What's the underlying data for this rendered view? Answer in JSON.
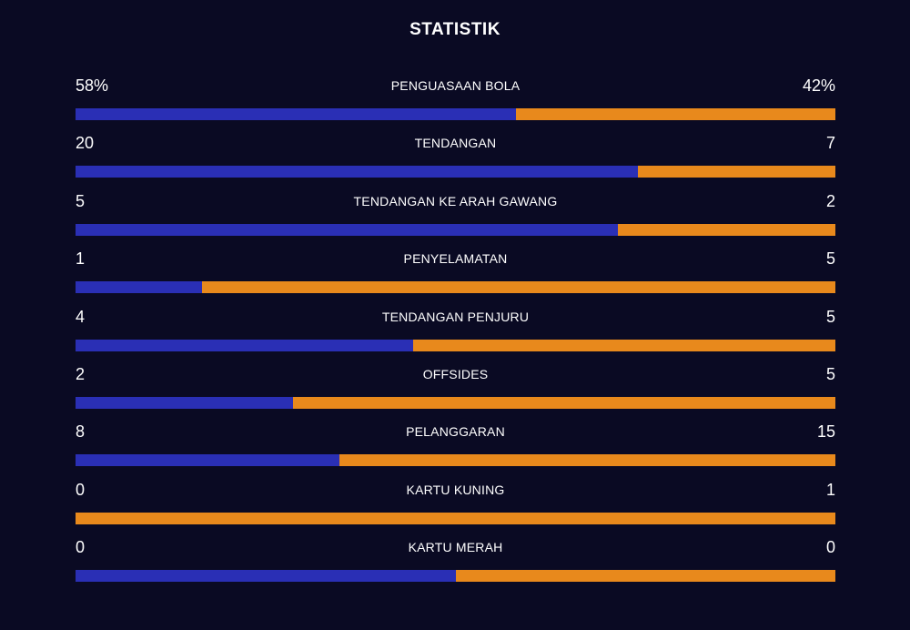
{
  "title": "STATISTIK",
  "colors": {
    "background": "#0a0a23",
    "home": "#2a2fb5",
    "away": "#e8891c",
    "text": "#ffffff"
  },
  "stats": [
    {
      "name": "PENGUASAAN BOLA",
      "home": "58%",
      "away": "42%",
      "home_share": 0.58
    },
    {
      "name": "TENDANGAN",
      "home": "20",
      "away": "7",
      "home_share": 0.7407
    },
    {
      "name": "TENDANGAN KE ARAH GAWANG",
      "home": "5",
      "away": "2",
      "home_share": 0.7143
    },
    {
      "name": "PENYELAMATAN",
      "home": "1",
      "away": "5",
      "home_share": 0.1667
    },
    {
      "name": "TENDANGAN PENJURU",
      "home": "4",
      "away": "5",
      "home_share": 0.4444
    },
    {
      "name": "OFFSIDES",
      "home": "2",
      "away": "5",
      "home_share": 0.2857
    },
    {
      "name": "PELANGGARAN",
      "home": "8",
      "away": "15",
      "home_share": 0.3478
    },
    {
      "name": "KARTU KUNING",
      "home": "0",
      "away": "1",
      "home_share": 0.0
    },
    {
      "name": "KARTU MERAH",
      "home": "0",
      "away": "0",
      "home_share": 0.5
    }
  ]
}
